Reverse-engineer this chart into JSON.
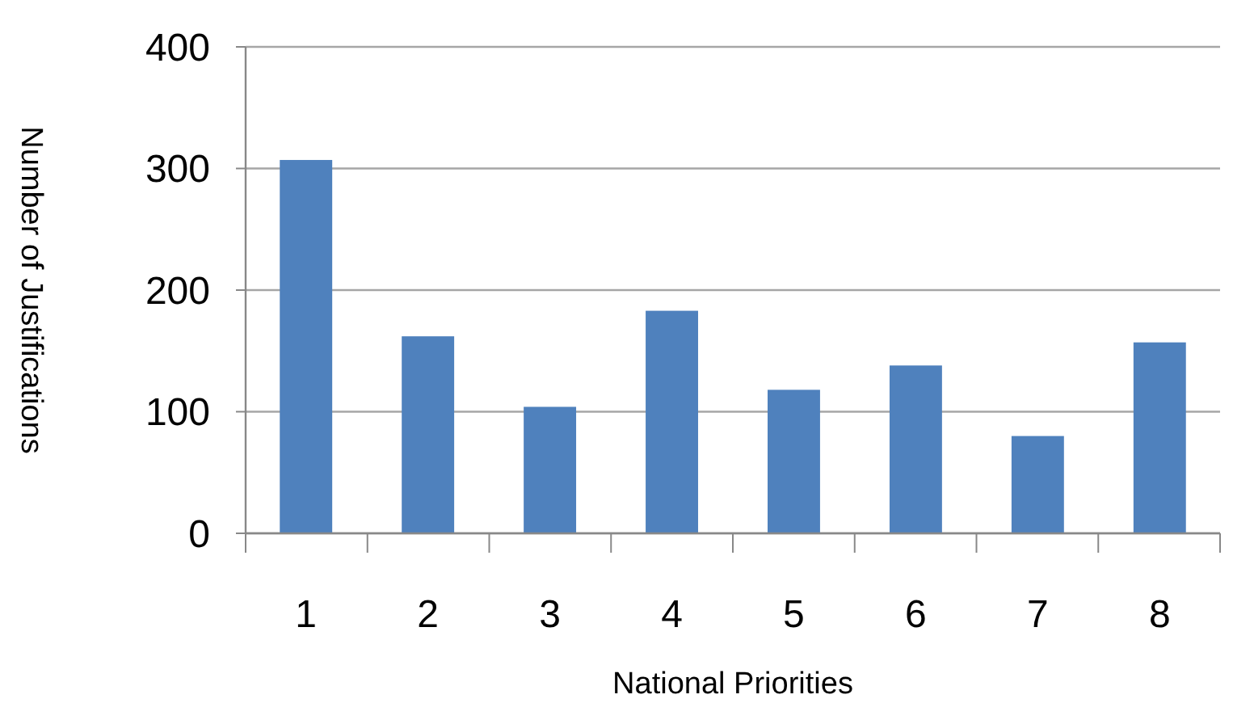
{
  "chart_data": {
    "type": "bar",
    "xlabel": "National Priorities",
    "ylabel": "Number of Justifications",
    "categories": [
      "1",
      "2",
      "3",
      "4",
      "5",
      "6",
      "7",
      "8"
    ],
    "values": [
      307,
      162,
      104,
      183,
      118,
      138,
      80,
      157
    ],
    "color": "#4f81bd",
    "ylim": [
      0,
      400
    ],
    "yticks": [
      0,
      100,
      200,
      300,
      400
    ],
    "grid": "y"
  }
}
